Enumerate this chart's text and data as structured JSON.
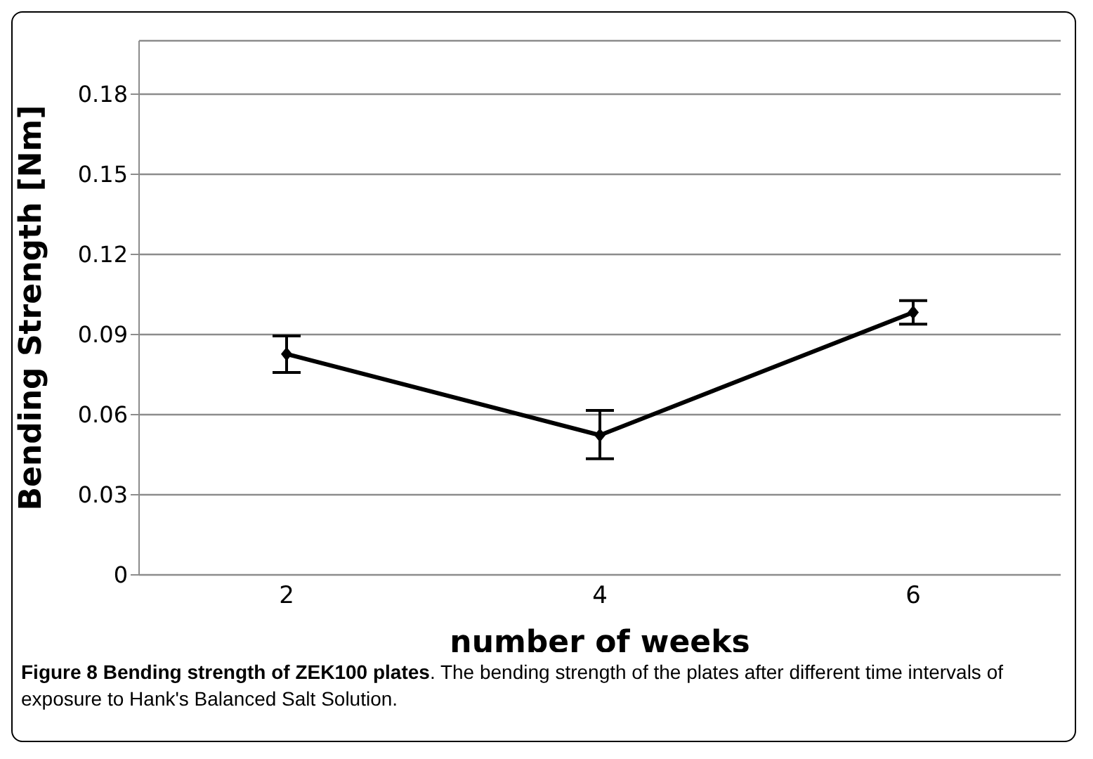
{
  "chart_data": {
    "type": "line",
    "title": "Figure 8 Bending strength of ZEK100 plates",
    "annotations": [
      ". The bending strength of the plates after different time intervals of exposure to Hank's Balanced Salt Solution."
    ],
    "xlabel": "number of weeks",
    "ylabel": "Bending Strength [Nm]",
    "categories": [
      "2",
      "4",
      "6"
    ],
    "series": [
      {
        "color": "#000000",
        "values": [
          0.0827,
          0.0523,
          0.0983
        ],
        "errors": [
          [
            0.0758,
            0.0895
          ],
          [
            0.0435,
            0.0616
          ],
          [
            0.0939,
            0.1027
          ]
        ]
      }
    ],
    "ylim": [
      0,
      0.2
    ],
    "yticks": [
      0,
      0.03,
      0.06,
      0.09,
      0.12,
      0.15,
      0.18
    ],
    "grid": "y",
    "marker": "diamond",
    "line_style": "solid",
    "legend": false
  }
}
